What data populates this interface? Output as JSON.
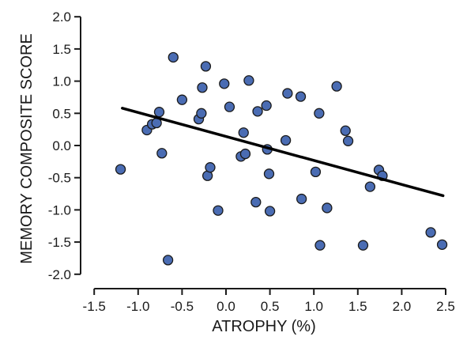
{
  "chart_data": {
    "type": "scatter",
    "title": "",
    "xlabel": "ATROPHY (%)",
    "ylabel": "MEMORY COMPOSITE SCORE",
    "xlim": [
      -1.6,
      2.6
    ],
    "ylim": [
      -2.05,
      2.0
    ],
    "xticks": [
      "-1.5",
      "-1.0",
      "-0.5",
      "0.0",
      "0.5",
      "1.0",
      "1.5",
      "2.0",
      "2.5"
    ],
    "xtick_values": [
      -1.5,
      -1.0,
      -0.5,
      0.0,
      0.5,
      1.0,
      1.5,
      2.0,
      2.5
    ],
    "yticks": [
      "2.0",
      "1.5",
      "1.0",
      "0.5",
      "0.0",
      "-0.5",
      "-1.0",
      "-1.5",
      "-2.0"
    ],
    "ytick_values": [
      2.0,
      1.5,
      1.0,
      0.5,
      0.0,
      -0.5,
      -1.0,
      -1.5,
      -2.0
    ],
    "grid": false,
    "legend": "none",
    "point_color": "#4a6cb3",
    "point_edge_color": "#1a1a1a",
    "trend_line": {
      "x": [
        -1.18,
        2.47
      ],
      "y": [
        0.58,
        -0.78
      ],
      "color": "#000000"
    },
    "points": [
      {
        "x": -1.2,
        "y": -0.37
      },
      {
        "x": -0.9,
        "y": 0.24
      },
      {
        "x": -0.84,
        "y": 0.33
      },
      {
        "x": -0.79,
        "y": 0.35
      },
      {
        "x": -0.76,
        "y": 0.52
      },
      {
        "x": -0.73,
        "y": -0.12
      },
      {
        "x": -0.66,
        "y": -1.78
      },
      {
        "x": -0.6,
        "y": 1.37
      },
      {
        "x": -0.5,
        "y": 0.71
      },
      {
        "x": -0.31,
        "y": 0.41
      },
      {
        "x": -0.28,
        "y": 0.5
      },
      {
        "x": -0.27,
        "y": 0.9
      },
      {
        "x": -0.23,
        "y": 1.23
      },
      {
        "x": -0.21,
        "y": -0.47
      },
      {
        "x": -0.18,
        "y": -0.34
      },
      {
        "x": -0.09,
        "y": -1.01
      },
      {
        "x": -0.02,
        "y": 0.96
      },
      {
        "x": 0.04,
        "y": 0.6
      },
      {
        "x": 0.17,
        "y": -0.17
      },
      {
        "x": 0.2,
        "y": 0.2
      },
      {
        "x": 0.22,
        "y": -0.13
      },
      {
        "x": 0.26,
        "y": 1.01
      },
      {
        "x": 0.34,
        "y": -0.88
      },
      {
        "x": 0.36,
        "y": 0.53
      },
      {
        "x": 0.46,
        "y": 0.62
      },
      {
        "x": 0.47,
        "y": -0.06
      },
      {
        "x": 0.49,
        "y": -0.44
      },
      {
        "x": 0.5,
        "y": -1.02
      },
      {
        "x": 0.68,
        "y": 0.08
      },
      {
        "x": 0.7,
        "y": 0.81
      },
      {
        "x": 0.85,
        "y": 0.76
      },
      {
        "x": 0.86,
        "y": -0.83
      },
      {
        "x": 1.02,
        "y": -0.41
      },
      {
        "x": 1.06,
        "y": 0.5
      },
      {
        "x": 1.07,
        "y": -1.55
      },
      {
        "x": 1.15,
        "y": -0.97
      },
      {
        "x": 1.26,
        "y": 0.92
      },
      {
        "x": 1.36,
        "y": 0.23
      },
      {
        "x": 1.39,
        "y": 0.07
      },
      {
        "x": 1.56,
        "y": -1.55
      },
      {
        "x": 1.64,
        "y": -0.64
      },
      {
        "x": 1.74,
        "y": -0.38
      },
      {
        "x": 1.78,
        "y": -0.47
      },
      {
        "x": 2.33,
        "y": -1.35
      },
      {
        "x": 2.46,
        "y": -1.54
      }
    ]
  }
}
